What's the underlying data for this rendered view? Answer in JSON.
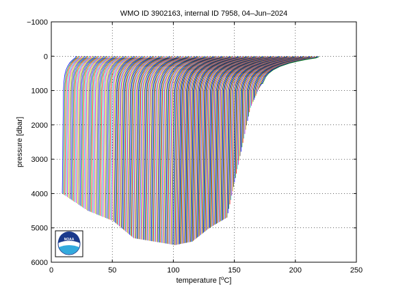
{
  "chart_data": {
    "type": "line",
    "title": "WMO ID 3902163, internal ID 7958, 04–Jun–2024",
    "xlabel": "temperature [",
    "xlabel_unit": "o",
    "xlabel_suffix": "C]",
    "ylabel": "pressure [dbar]",
    "xlim": [
      0,
      250
    ],
    "ylim": [
      -1000,
      6000
    ],
    "y_reversed": true,
    "grid": true,
    "xticks": [
      "0",
      "50",
      "100",
      "150",
      "200",
      "250"
    ],
    "xtick_values": [
      0,
      50,
      100,
      150,
      200,
      250
    ],
    "yticks": [
      "−1000",
      "0",
      "1000",
      "2000",
      "3000",
      "4000",
      "5000",
      "6000"
    ],
    "ytick_values": [
      -1000,
      0,
      1000,
      2000,
      3000,
      4000,
      5000,
      6000
    ],
    "series_colors": [
      "#0000ff",
      "#008000",
      "#ff0000",
      "#00bfbf",
      "#bf00bf",
      "#bfbf00",
      "#404040"
    ],
    "profile_count": 198,
    "profile_offset_start": 0,
    "profile_offset_step": 1,
    "profile_shape": {
      "surface_temperatures": [
        [
          0,
          20
        ],
        [
          40,
          25
        ],
        [
          100,
          28
        ],
        [
          150,
          26
        ],
        [
          197,
          22
        ]
      ],
      "deep_temperatures": [
        [
          0,
          10
        ],
        [
          40,
          12
        ],
        [
          100,
          3
        ],
        [
          150,
          -12
        ],
        [
          197,
          -25
        ]
      ],
      "max_pressure": [
        [
          0,
          4000
        ],
        [
          20,
          4500
        ],
        [
          40,
          4800
        ],
        [
          60,
          5300
        ],
        [
          80,
          5400
        ],
        [
          100,
          5500
        ],
        [
          120,
          5400
        ],
        [
          140,
          5000
        ],
        [
          160,
          4700
        ],
        [
          185,
          1500
        ],
        [
          197,
          800
        ]
      ]
    },
    "logo": "noaa"
  }
}
